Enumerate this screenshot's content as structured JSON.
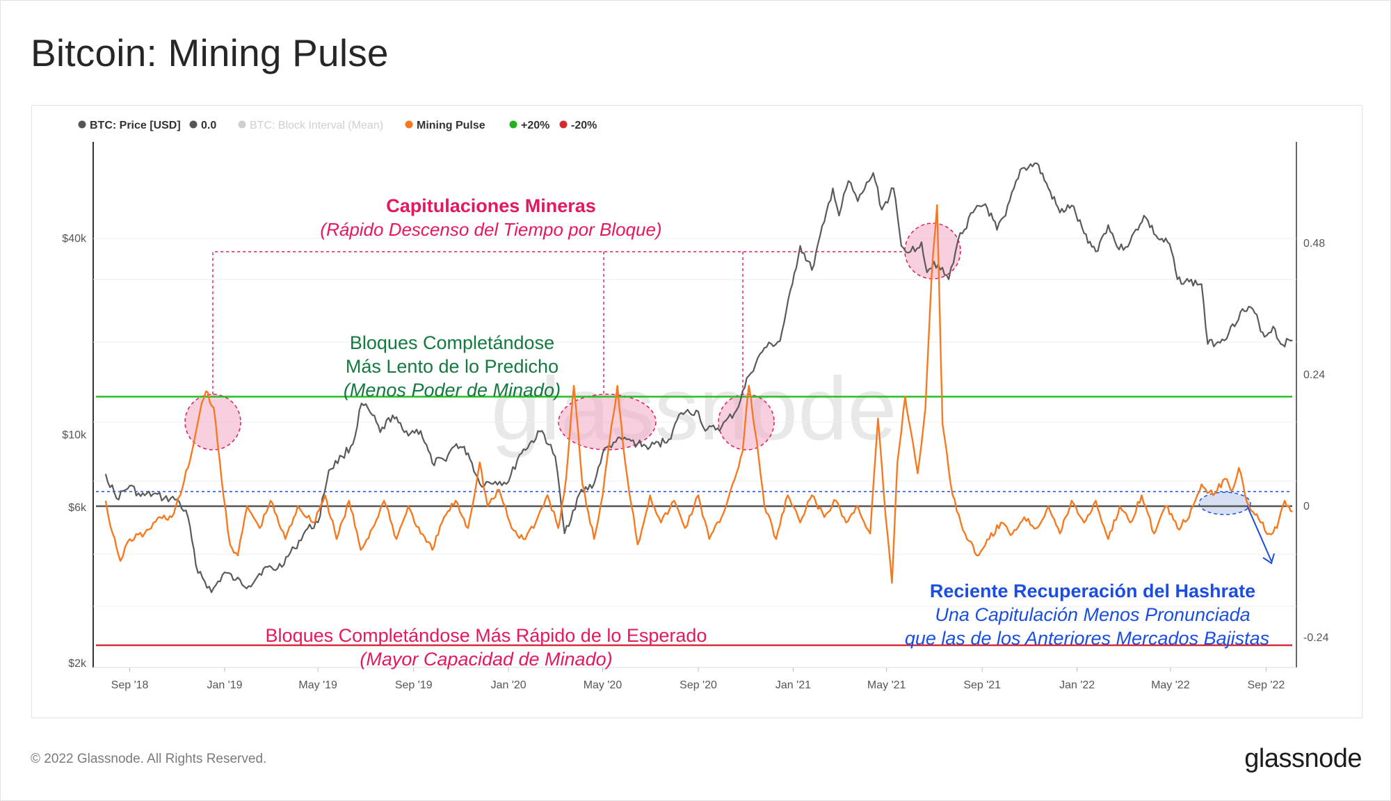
{
  "page": {
    "title": "Bitcoin: Mining Pulse",
    "footer_copyright": "© 2022 Glassnode. All Rights Reserved.",
    "footer_logo": "glassnode",
    "watermark": "glassnode"
  },
  "legend": [
    {
      "label": "BTC: Price [USD]",
      "color": "#555555",
      "muted": false
    },
    {
      "label": "0.0",
      "color": "#555555",
      "muted": false
    },
    {
      "label": "BTC: Block Interval (Mean)",
      "color": "#cfcfcf",
      "muted": true
    },
    {
      "label": "Mining Pulse",
      "color": "#f7791f",
      "muted": false
    },
    {
      "label": "+20%",
      "color": "#21b21e",
      "muted": false
    },
    {
      "label": "-20%",
      "color": "#d42a2a",
      "muted": false
    }
  ],
  "annotations": {
    "capitulations_title": "Capitulaciones Mineras",
    "capitulations_sub": "(Rápido Descenso del Tiempo por Bloque)",
    "slower_line1": "Bloques Completándose",
    "slower_line2": "Más Lento de lo Predicho",
    "slower_line3": "(Menos Poder de Minado)",
    "faster_line1": "Bloques Completándose Más Rápido de lo Esperado",
    "faster_line2": "(Mayor Capacidad de Minado)",
    "recovery_title": "Reciente Recuperación del Hashrate",
    "recovery_line1": "Una Capitulación Menos Pronunciada",
    "recovery_line2": "que las de los Anteriores Mercados Bajistas"
  },
  "colors": {
    "price": "#5a5a5a",
    "pulse": "#f7791f",
    "plus20": "#21c21e",
    "minus20": "#d42a3a",
    "zero": "#555555",
    "magenta": "#e5185c",
    "green_text": "#137a3e",
    "blue_text": "#1a4ee0"
  },
  "chart_data": {
    "type": "line",
    "x_ticks": [
      "Sep '18",
      "Jan '19",
      "May '19",
      "Sep '19",
      "Jan '20",
      "May '20",
      "Sep '20",
      "Jan '21",
      "May '21",
      "Sep '21",
      "Jan '22",
      "May '22",
      "Sep '22"
    ],
    "left_axis": {
      "scale": "log",
      "ticks": [
        "$2k",
        "$6k",
        "$10k",
        "$40k"
      ],
      "tick_values": [
        2000,
        6000,
        10000,
        40000
      ],
      "range": [
        2000,
        80000
      ]
    },
    "right_axis": {
      "ticks": [
        "-0.24",
        "0",
        "0.24",
        "0.48"
      ],
      "tick_values": [
        -0.24,
        0,
        0.24,
        0.48
      ],
      "range": [
        -0.25,
        0.72
      ]
    },
    "reference_lines": {
      "plus20": 0.2,
      "minus20": -0.2,
      "zero": 0
    },
    "series": [
      {
        "name": "BTC: Price [USD]",
        "points": [
          [
            "2018-08-01",
            7600
          ],
          [
            "2018-08-15",
            6400
          ],
          [
            "2018-09-01",
            7000
          ],
          [
            "2018-09-15",
            6500
          ],
          [
            "2018-10-01",
            6600
          ],
          [
            "2018-10-15",
            6400
          ],
          [
            "2018-11-01",
            6350
          ],
          [
            "2018-11-15",
            5600
          ],
          [
            "2018-11-25",
            4000
          ],
          [
            "2018-12-15",
            3300
          ],
          [
            "2019-01-01",
            3800
          ],
          [
            "2019-01-15",
            3600
          ],
          [
            "2019-02-01",
            3450
          ],
          [
            "2019-02-20",
            3900
          ],
          [
            "2019-03-10",
            3900
          ],
          [
            "2019-04-01",
            4500
          ],
          [
            "2019-04-15",
            5100
          ],
          [
            "2019-05-01",
            5400
          ],
          [
            "2019-05-15",
            7800
          ],
          [
            "2019-06-01",
            8600
          ],
          [
            "2019-06-15",
            9400
          ],
          [
            "2019-06-26",
            12500
          ],
          [
            "2019-07-10",
            11500
          ],
          [
            "2019-07-20",
            10200
          ],
          [
            "2019-08-05",
            11500
          ],
          [
            "2019-08-20",
            10200
          ],
          [
            "2019-09-10",
            10300
          ],
          [
            "2019-09-25",
            8200
          ],
          [
            "2019-10-10",
            8400
          ],
          [
            "2019-10-26",
            9400
          ],
          [
            "2019-11-10",
            8800
          ],
          [
            "2019-11-25",
            7100
          ],
          [
            "2019-12-15",
            7200
          ],
          [
            "2020-01-01",
            7200
          ],
          [
            "2020-01-15",
            8700
          ],
          [
            "2020-02-13",
            10300
          ],
          [
            "2020-03-01",
            8600
          ],
          [
            "2020-03-13",
            5000
          ],
          [
            "2020-04-01",
            6600
          ],
          [
            "2020-04-20",
            7100
          ],
          [
            "2020-05-01",
            8800
          ],
          [
            "2020-05-15",
            9500
          ],
          [
            "2020-06-01",
            9700
          ],
          [
            "2020-06-15",
            9400
          ],
          [
            "2020-07-01",
            9200
          ],
          [
            "2020-07-25",
            9700
          ],
          [
            "2020-08-10",
            11700
          ],
          [
            "2020-09-01",
            11800
          ],
          [
            "2020-09-10",
            10300
          ],
          [
            "2020-10-01",
            10600
          ],
          [
            "2020-10-20",
            11900
          ],
          [
            "2020-11-05",
            15200
          ],
          [
            "2020-11-25",
            18500
          ],
          [
            "2020-12-15",
            19400
          ],
          [
            "2020-12-31",
            29000
          ],
          [
            "2021-01-10",
            38000
          ],
          [
            "2021-01-25",
            32000
          ],
          [
            "2021-02-10",
            45000
          ],
          [
            "2021-02-21",
            57000
          ],
          [
            "2021-03-01",
            47000
          ],
          [
            "2021-03-13",
            60000
          ],
          [
            "2021-03-25",
            52000
          ],
          [
            "2021-04-14",
            63500
          ],
          [
            "2021-04-25",
            49000
          ],
          [
            "2021-05-10",
            57000
          ],
          [
            "2021-05-20",
            38000
          ],
          [
            "2021-06-01",
            36500
          ],
          [
            "2021-06-15",
            39000
          ],
          [
            "2021-06-22",
            31500
          ],
          [
            "2021-07-01",
            34000
          ],
          [
            "2021-07-20",
            30000
          ],
          [
            "2021-08-01",
            39500
          ],
          [
            "2021-08-20",
            48000
          ],
          [
            "2021-09-05",
            51000
          ],
          [
            "2021-09-20",
            42500
          ],
          [
            "2021-10-01",
            47000
          ],
          [
            "2021-10-20",
            65000
          ],
          [
            "2021-11-10",
            68000
          ],
          [
            "2021-11-25",
            57000
          ],
          [
            "2021-12-10",
            48000
          ],
          [
            "2021-12-25",
            50500
          ],
          [
            "2022-01-10",
            41500
          ],
          [
            "2022-01-25",
            36500
          ],
          [
            "2022-02-10",
            44000
          ],
          [
            "2022-02-24",
            37000
          ],
          [
            "2022-03-10",
            39000
          ],
          [
            "2022-03-28",
            47000
          ],
          [
            "2022-04-15",
            40000
          ],
          [
            "2022-04-30",
            38500
          ],
          [
            "2022-05-10",
            30000
          ],
          [
            "2022-05-25",
            29500
          ],
          [
            "2022-06-10",
            29000
          ],
          [
            "2022-06-18",
            19000
          ],
          [
            "2022-07-01",
            19300
          ],
          [
            "2022-07-15",
            20500
          ],
          [
            "2022-07-30",
            23800
          ],
          [
            "2022-08-15",
            24300
          ],
          [
            "2022-08-30",
            20000
          ],
          [
            "2022-09-10",
            21500
          ],
          [
            "2022-09-20",
            19000
          ],
          [
            "2022-10-05",
            19500
          ]
        ]
      },
      {
        "name": "Mining Pulse",
        "points": [
          [
            "2018-08-01",
            0.01
          ],
          [
            "2018-08-10",
            -0.05
          ],
          [
            "2018-08-20",
            -0.1
          ],
          [
            "2018-09-01",
            -0.06
          ],
          [
            "2018-09-20",
            -0.05
          ],
          [
            "2018-10-10",
            -0.02
          ],
          [
            "2018-10-25",
            -0.02
          ],
          [
            "2018-11-05",
            0.02
          ],
          [
            "2018-11-20",
            0.1
          ],
          [
            "2018-11-30",
            0.17
          ],
          [
            "2018-12-08",
            0.21
          ],
          [
            "2018-12-18",
            0.18
          ],
          [
            "2018-12-28",
            0.05
          ],
          [
            "2019-01-08",
            -0.07
          ],
          [
            "2019-01-18",
            -0.09
          ],
          [
            "2019-01-30",
            0.0
          ],
          [
            "2019-02-15",
            -0.04
          ],
          [
            "2019-03-01",
            0.01
          ],
          [
            "2019-03-20",
            -0.06
          ],
          [
            "2019-04-05",
            0.0
          ],
          [
            "2019-04-25",
            -0.03
          ],
          [
            "2019-05-10",
            0.02
          ],
          [
            "2019-05-25",
            -0.06
          ],
          [
            "2019-06-10",
            0.01
          ],
          [
            "2019-06-25",
            -0.08
          ],
          [
            "2019-07-10",
            -0.04
          ],
          [
            "2019-07-25",
            0.01
          ],
          [
            "2019-08-10",
            -0.06
          ],
          [
            "2019-08-25",
            0.0
          ],
          [
            "2019-09-10",
            -0.05
          ],
          [
            "2019-09-25",
            -0.08
          ],
          [
            "2019-10-10",
            -0.02
          ],
          [
            "2019-10-25",
            0.01
          ],
          [
            "2019-11-10",
            -0.04
          ],
          [
            "2019-11-25",
            0.08
          ],
          [
            "2019-12-05",
            0.0
          ],
          [
            "2019-12-20",
            0.03
          ],
          [
            "2020-01-05",
            -0.04
          ],
          [
            "2020-01-20",
            -0.06
          ],
          [
            "2020-02-05",
            -0.03
          ],
          [
            "2020-02-20",
            0.02
          ],
          [
            "2020-03-05",
            -0.04
          ],
          [
            "2020-03-15",
            0.05
          ],
          [
            "2020-03-25",
            0.22
          ],
          [
            "2020-04-05",
            0.04
          ],
          [
            "2020-04-20",
            -0.06
          ],
          [
            "2020-05-01",
            0.02
          ],
          [
            "2020-05-10",
            0.12
          ],
          [
            "2020-05-20",
            0.22
          ],
          [
            "2020-05-30",
            0.08
          ],
          [
            "2020-06-15",
            -0.07
          ],
          [
            "2020-07-01",
            0.02
          ],
          [
            "2020-07-15",
            -0.03
          ],
          [
            "2020-08-01",
            0.01
          ],
          [
            "2020-08-15",
            -0.04
          ],
          [
            "2020-09-01",
            0.02
          ],
          [
            "2020-09-15",
            -0.06
          ],
          [
            "2020-10-01",
            -0.02
          ],
          [
            "2020-10-15",
            0.04
          ],
          [
            "2020-10-28",
            0.1
          ],
          [
            "2020-11-05",
            0.22
          ],
          [
            "2020-11-15",
            0.12
          ],
          [
            "2020-11-25",
            0.0
          ],
          [
            "2020-12-10",
            -0.06
          ],
          [
            "2020-12-25",
            0.02
          ],
          [
            "2021-01-10",
            -0.03
          ],
          [
            "2021-01-25",
            0.02
          ],
          [
            "2021-02-10",
            -0.02
          ],
          [
            "2021-02-25",
            0.01
          ],
          [
            "2021-03-10",
            -0.03
          ],
          [
            "2021-03-25",
            0.0
          ],
          [
            "2021-04-10",
            -0.05
          ],
          [
            "2021-04-20",
            0.16
          ],
          [
            "2021-04-30",
            -0.02
          ],
          [
            "2021-05-08",
            -0.14
          ],
          [
            "2021-05-15",
            0.08
          ],
          [
            "2021-05-25",
            0.2
          ],
          [
            "2021-06-01",
            0.14
          ],
          [
            "2021-06-10",
            0.06
          ],
          [
            "2021-06-20",
            0.18
          ],
          [
            "2021-06-28",
            0.42
          ],
          [
            "2021-07-05",
            0.55
          ],
          [
            "2021-07-12",
            0.15
          ],
          [
            "2021-07-25",
            0.02
          ],
          [
            "2021-08-10",
            -0.05
          ],
          [
            "2021-08-25",
            -0.09
          ],
          [
            "2021-09-10",
            -0.06
          ],
          [
            "2021-09-25",
            -0.03
          ],
          [
            "2021-10-10",
            -0.05
          ],
          [
            "2021-10-25",
            -0.02
          ],
          [
            "2021-11-10",
            -0.04
          ],
          [
            "2021-11-25",
            0.0
          ],
          [
            "2021-12-10",
            -0.05
          ],
          [
            "2021-12-25",
            0.01
          ],
          [
            "2022-01-10",
            -0.03
          ],
          [
            "2022-01-25",
            0.01
          ],
          [
            "2022-02-10",
            -0.06
          ],
          [
            "2022-02-25",
            0.0
          ],
          [
            "2022-03-10",
            -0.03
          ],
          [
            "2022-03-25",
            0.02
          ],
          [
            "2022-04-10",
            -0.05
          ],
          [
            "2022-04-25",
            0.0
          ],
          [
            "2022-05-10",
            -0.04
          ],
          [
            "2022-05-25",
            -0.02
          ],
          [
            "2022-06-10",
            0.04
          ],
          [
            "2022-06-25",
            0.02
          ],
          [
            "2022-07-10",
            0.05
          ],
          [
            "2022-07-20",
            0.03
          ],
          [
            "2022-07-28",
            0.07
          ],
          [
            "2022-08-05",
            0.02
          ],
          [
            "2022-08-15",
            -0.01
          ],
          [
            "2022-08-25",
            -0.03
          ],
          [
            "2022-09-05",
            -0.05
          ],
          [
            "2022-09-15",
            -0.04
          ],
          [
            "2022-09-25",
            0.01
          ],
          [
            "2022-10-05",
            -0.01
          ]
        ]
      }
    ]
  }
}
